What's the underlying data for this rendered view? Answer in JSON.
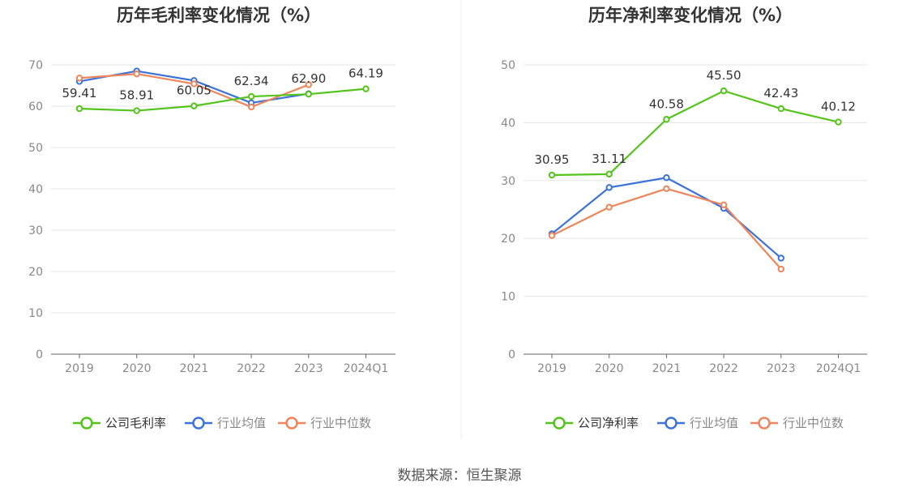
{
  "source_text": "数据来源：恒生聚源",
  "colors": {
    "company": "#52c41a",
    "avg": "#3b73d9",
    "median": "#f0845a",
    "axis_text": "#888888",
    "grid": "#e6e6e6",
    "title": "#333333",
    "label": "#333333"
  },
  "chart_data": [
    {
      "type": "line",
      "title": "历年毛利率变化情况（%）",
      "xlabel": "",
      "ylabel": "",
      "categories": [
        "2019",
        "2020",
        "2021",
        "2022",
        "2023",
        "2024Q1"
      ],
      "ylim": [
        0,
        70
      ],
      "yticks": [
        0,
        10,
        20,
        30,
        40,
        50,
        60,
        70
      ],
      "grid": true,
      "legend_position": "bottom",
      "series": [
        {
          "name": "公司毛利率",
          "color": "#52c41a",
          "values": [
            59.41,
            58.91,
            60.05,
            62.34,
            62.9,
            64.19
          ],
          "labels": [
            "59.41",
            "58.91",
            "60.05",
            "62.34",
            "62.90",
            "64.19"
          ]
        },
        {
          "name": "行业均值",
          "color": "#3b73d9",
          "values": [
            66.0,
            68.5,
            66.2,
            60.8,
            63.0,
            null
          ]
        },
        {
          "name": "行业中位数",
          "color": "#f0845a",
          "values": [
            66.8,
            67.8,
            65.4,
            59.8,
            65.2,
            null
          ]
        }
      ]
    },
    {
      "type": "line",
      "title": "历年净利率变化情况（%）",
      "xlabel": "",
      "ylabel": "",
      "categories": [
        "2019",
        "2020",
        "2021",
        "2022",
        "2023",
        "2024Q1"
      ],
      "ylim": [
        0,
        50
      ],
      "yticks": [
        0,
        10,
        20,
        30,
        40,
        50
      ],
      "grid": true,
      "legend_position": "bottom",
      "series": [
        {
          "name": "公司净利率",
          "color": "#52c41a",
          "values": [
            30.95,
            31.11,
            40.58,
            45.5,
            42.43,
            40.12
          ],
          "labels": [
            "30.95",
            "31.11",
            "40.58",
            "45.50",
            "42.43",
            "40.12"
          ]
        },
        {
          "name": "行业均值",
          "color": "#3b73d9",
          "values": [
            20.8,
            28.8,
            30.5,
            25.2,
            16.6,
            null
          ]
        },
        {
          "name": "行业中位数",
          "color": "#f0845a",
          "values": [
            20.5,
            25.4,
            28.6,
            25.8,
            14.7,
            null
          ]
        }
      ]
    }
  ]
}
